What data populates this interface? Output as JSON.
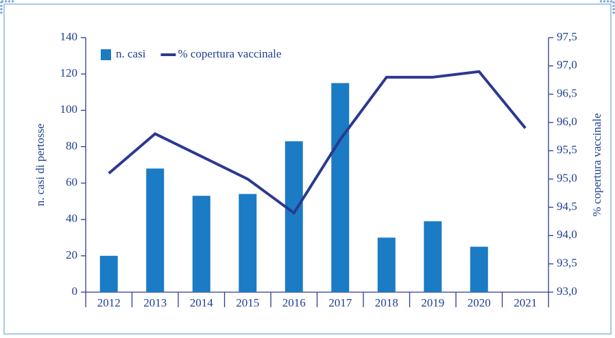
{
  "chart_data": {
    "type": "bar-line",
    "categories": [
      "2012",
      "2013",
      "2014",
      "2015",
      "2016",
      "2017",
      "2018",
      "2019",
      "2020",
      "2021"
    ],
    "series": [
      {
        "name": "n. casi",
        "type": "bar",
        "color": "#1b7bc4",
        "values": [
          20,
          68,
          53,
          54,
          83,
          115,
          30,
          39,
          25,
          null
        ]
      },
      {
        "name": "% copertura vaccinale",
        "type": "line",
        "axis": "y2",
        "color": "#2b3990",
        "values": [
          95.1,
          95.8,
          95.4,
          95.0,
          94.4,
          95.7,
          96.8,
          96.8,
          96.9,
          95.9
        ]
      }
    ],
    "ylabel": "n. casi di pertosse",
    "y2label": "% copertura vaccinale",
    "ylim": [
      0,
      140
    ],
    "yticks": [
      0,
      20,
      40,
      60,
      80,
      100,
      120,
      140
    ],
    "y2lim": [
      93.0,
      97.5
    ],
    "y2ticks": [
      {
        "value": 93.0,
        "label": "93,0"
      },
      {
        "value": 93.5,
        "label": "93,5"
      },
      {
        "value": 94.0,
        "label": "94,0"
      },
      {
        "value": 94.5,
        "label": "94,5"
      },
      {
        "value": 95.0,
        "label": "95,0"
      },
      {
        "value": 95.5,
        "label": "95,5"
      },
      {
        "value": 96.0,
        "label": "96,0"
      },
      {
        "value": 96.5,
        "label": "96,5"
      },
      {
        "value": 97.0,
        "label": "97,0"
      },
      {
        "value": 97.5,
        "label": "97,5"
      }
    ],
    "legend": "upper left",
    "grid": false
  }
}
